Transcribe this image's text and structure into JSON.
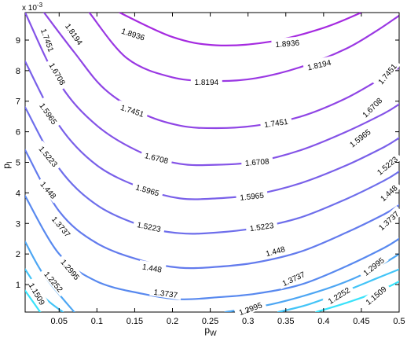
{
  "chart_data": {
    "type": "contour",
    "xlabel": "p",
    "xlabel_sub": "W",
    "ylabel": "p",
    "ylabel_sub": "I",
    "y_multiplier_base": "x 10",
    "y_multiplier_exp": "-3",
    "xlim": [
      0.005,
      0.5
    ],
    "ylim": [
      0.0001,
      0.0099
    ],
    "x_ticks": [
      0.05,
      0.1,
      0.15,
      0.2,
      0.25,
      0.3,
      0.35,
      0.4,
      0.45,
      0.5
    ],
    "x_tick_labels": [
      "0.05",
      "0.1",
      "0.15",
      "0.2",
      "0.25",
      "0.3",
      "0.35",
      "0.4",
      "0.45",
      "0.5"
    ],
    "y_ticks": [
      0.001,
      0.002,
      0.003,
      0.004,
      0.005,
      0.006,
      0.007,
      0.008,
      0.009
    ],
    "y_tick_labels": [
      "1",
      "2",
      "3",
      "4",
      "5",
      "6",
      "7",
      "8",
      "9"
    ],
    "grid": false,
    "contours": [
      {
        "level": "1.8936",
        "color": "#a52ae0",
        "points": [
          [
            0.13,
            0.0099
          ],
          [
            0.2,
            0.0091
          ],
          [
            0.258,
            0.00883
          ],
          [
            0.33,
            0.00895
          ],
          [
            0.4,
            0.0094
          ],
          [
            0.45,
            0.0099
          ]
        ]
      },
      {
        "level": "1.8194",
        "color": "#9a38e3",
        "points": [
          [
            0.09,
            0.0099
          ],
          [
            0.14,
            0.0084
          ],
          [
            0.2,
            0.00778
          ],
          [
            0.258,
            0.00766
          ],
          [
            0.31,
            0.00775
          ],
          [
            0.37,
            0.00812
          ],
          [
            0.43,
            0.00872
          ],
          [
            0.47,
            0.0093
          ],
          [
            0.5,
            0.0098
          ]
        ]
      },
      {
        "level": "1.7451",
        "color": "#8f45e5",
        "points": [
          [
            0.03,
            0.0099
          ],
          [
            0.07,
            0.0086
          ],
          [
            0.11,
            0.0074
          ],
          [
            0.16,
            0.0066
          ],
          [
            0.21,
            0.0062
          ],
          [
            0.258,
            0.00612
          ],
          [
            0.31,
            0.0062
          ],
          [
            0.37,
            0.0065
          ],
          [
            0.43,
            0.0071
          ],
          [
            0.48,
            0.0078
          ],
          [
            0.5,
            0.0081
          ]
        ]
      },
      {
        "level": "1.6708",
        "color": "#8453e7",
        "points": [
          [
            0.005,
            0.0099
          ],
          [
            0.05,
            0.0076
          ],
          [
            0.1,
            0.0062
          ],
          [
            0.16,
            0.0053
          ],
          [
            0.21,
            0.00495
          ],
          [
            0.258,
            0.00492
          ],
          [
            0.31,
            0.00502
          ],
          [
            0.37,
            0.0054
          ],
          [
            0.43,
            0.006
          ],
          [
            0.48,
            0.0066
          ],
          [
            0.5,
            0.0069
          ]
        ]
      },
      {
        "level": "1.5965",
        "color": "#7960e9",
        "points": [
          [
            0.005,
            0.0083
          ],
          [
            0.05,
            0.0062
          ],
          [
            0.1,
            0.0049
          ],
          [
            0.16,
            0.00415
          ],
          [
            0.21,
            0.00382
          ],
          [
            0.258,
            0.00382
          ],
          [
            0.31,
            0.00395
          ],
          [
            0.37,
            0.00432
          ],
          [
            0.43,
            0.0049
          ],
          [
            0.48,
            0.0055
          ],
          [
            0.5,
            0.0058
          ]
        ]
      },
      {
        "level": "1.5223",
        "color": "#6e6eeb",
        "points": [
          [
            0.005,
            0.0068
          ],
          [
            0.05,
            0.0048
          ],
          [
            0.1,
            0.0036
          ],
          [
            0.16,
            0.00292
          ],
          [
            0.21,
            0.00268
          ],
          [
            0.258,
            0.0027
          ],
          [
            0.31,
            0.00285
          ],
          [
            0.37,
            0.0032
          ],
          [
            0.43,
            0.0038
          ],
          [
            0.48,
            0.0044
          ],
          [
            0.5,
            0.0047
          ]
        ]
      },
      {
        "level": "1.448",
        "color": "#637bed",
        "points": [
          [
            0.005,
            0.0054
          ],
          [
            0.05,
            0.0034
          ],
          [
            0.1,
            0.00235
          ],
          [
            0.16,
            0.00178
          ],
          [
            0.21,
            0.00155
          ],
          [
            0.258,
            0.00158
          ],
          [
            0.31,
            0.00172
          ],
          [
            0.37,
            0.00208
          ],
          [
            0.43,
            0.0027
          ],
          [
            0.48,
            0.0033
          ],
          [
            0.5,
            0.0036
          ]
        ]
      },
      {
        "level": "1.3737",
        "color": "#5889ef",
        "points": [
          [
            0.005,
            0.0039
          ],
          [
            0.05,
            0.002
          ],
          [
            0.1,
            0.0011
          ],
          [
            0.16,
            0.0007
          ],
          [
            0.21,
            0.00052
          ],
          [
            0.258,
            0.00058
          ],
          [
            0.31,
            0.0007
          ],
          [
            0.37,
            0.001
          ],
          [
            0.43,
            0.0016
          ],
          [
            0.48,
            0.0022
          ],
          [
            0.5,
            0.0025
          ]
        ]
      },
      {
        "level": "1.2995",
        "color": "#4da6f3",
        "points": [
          [
            0.005,
            0.0024
          ],
          [
            0.03,
            0.0013
          ],
          [
            0.07,
            0.0001
          ]
        ],
        "extra": [
          [
            0.27,
            0.0001
          ],
          [
            0.33,
            0.00035
          ],
          [
            0.39,
            0.00075
          ],
          [
            0.44,
            0.0012
          ],
          [
            0.48,
            0.0017
          ],
          [
            0.5,
            0.002
          ]
        ]
      },
      {
        "level": "1.2252",
        "color": "#43c4f7",
        "points": [
          [
            0.005,
            0.0015
          ],
          [
            0.03,
            0.0006
          ],
          [
            0.055,
            0.0001
          ]
        ],
        "extra": [
          [
            0.34,
            0.0001
          ],
          [
            0.38,
            0.00035
          ],
          [
            0.43,
            0.0008
          ],
          [
            0.47,
            0.0012
          ],
          [
            0.5,
            0.0015
          ]
        ]
      },
      {
        "level": "1.1509",
        "color": "#3ae2fa",
        "points": [
          [
            0.005,
            0.0008
          ],
          [
            0.025,
            0.0001
          ]
        ],
        "extra": [
          [
            0.39,
            0.0001
          ],
          [
            0.43,
            0.0004
          ],
          [
            0.47,
            0.00075
          ],
          [
            0.5,
            0.0011
          ]
        ]
      }
    ],
    "labels": [
      {
        "text": "1.8936",
        "x": 0.148,
        "y": 0.0092,
        "angle": 18
      },
      {
        "text": "1.8936",
        "x": 0.352,
        "y": 0.0089,
        "angle": -5
      },
      {
        "text": "1.8194",
        "x": 0.07,
        "y": 0.0092,
        "angle": 55
      },
      {
        "text": "1.8194",
        "x": 0.245,
        "y": 0.00764,
        "angle": 0
      },
      {
        "text": "1.8194",
        "x": 0.394,
        "y": 0.0082,
        "angle": -13
      },
      {
        "text": "1.7451",
        "x": 0.035,
        "y": 0.009,
        "angle": 70
      },
      {
        "text": "1.7451",
        "x": 0.147,
        "y": 0.0067,
        "angle": 18
      },
      {
        "text": "1.7451",
        "x": 0.337,
        "y": 0.0063,
        "angle": -8
      },
      {
        "text": "1.7451",
        "x": 0.484,
        "y": 0.0079,
        "angle": -50
      },
      {
        "text": "1.6708",
        "x": 0.048,
        "y": 0.0079,
        "angle": 60
      },
      {
        "text": "1.6708",
        "x": 0.179,
        "y": 0.00515,
        "angle": 14
      },
      {
        "text": "1.6708",
        "x": 0.312,
        "y": 0.00502,
        "angle": -5
      },
      {
        "text": "1.6708",
        "x": 0.464,
        "y": 0.0068,
        "angle": -45
      },
      {
        "text": "1.5965",
        "x": 0.036,
        "y": 0.0066,
        "angle": 55
      },
      {
        "text": "1.5965",
        "x": 0.167,
        "y": 0.0041,
        "angle": 16
      },
      {
        "text": "1.5965",
        "x": 0.305,
        "y": 0.0039,
        "angle": -6
      },
      {
        "text": "1.5965",
        "x": 0.448,
        "y": 0.0058,
        "angle": -38
      },
      {
        "text": "1.5223",
        "x": 0.036,
        "y": 0.0052,
        "angle": 50
      },
      {
        "text": "1.5223",
        "x": 0.169,
        "y": 0.0029,
        "angle": 12
      },
      {
        "text": "1.5223",
        "x": 0.318,
        "y": 0.0029,
        "angle": -8
      },
      {
        "text": "1.5223",
        "x": 0.484,
        "y": 0.0049,
        "angle": -40
      },
      {
        "text": "1.448",
        "x": 0.036,
        "y": 0.0041,
        "angle": 50
      },
      {
        "text": "1.448",
        "x": 0.173,
        "y": 0.00155,
        "angle": 10
      },
      {
        "text": "1.448",
        "x": 0.336,
        "y": 0.0021,
        "angle": -15
      },
      {
        "text": "1.448",
        "x": 0.486,
        "y": 0.004,
        "angle": -42
      },
      {
        "text": "1.3737",
        "x": 0.053,
        "y": 0.0029,
        "angle": 50
      },
      {
        "text": "1.3737",
        "x": 0.191,
        "y": 0.00072,
        "angle": 8
      },
      {
        "text": "1.3737",
        "x": 0.36,
        "y": 0.0012,
        "angle": -25
      },
      {
        "text": "1.3737",
        "x": 0.486,
        "y": 0.0031,
        "angle": -42
      },
      {
        "text": "1.2995",
        "x": 0.065,
        "y": 0.0015,
        "angle": 50
      },
      {
        "text": "1.2995",
        "x": 0.303,
        "y": 0.00022,
        "angle": -20
      },
      {
        "text": "1.2995",
        "x": 0.466,
        "y": 0.0016,
        "angle": -38
      },
      {
        "text": "1.2252",
        "x": 0.043,
        "y": 0.0011,
        "angle": 50
      },
      {
        "text": "1.2252",
        "x": 0.42,
        "y": 0.00065,
        "angle": -32
      },
      {
        "text": "1.1509",
        "x": 0.021,
        "y": 0.0007,
        "angle": 60
      },
      {
        "text": "1.1509",
        "x": 0.469,
        "y": 0.00065,
        "angle": -40
      }
    ]
  }
}
